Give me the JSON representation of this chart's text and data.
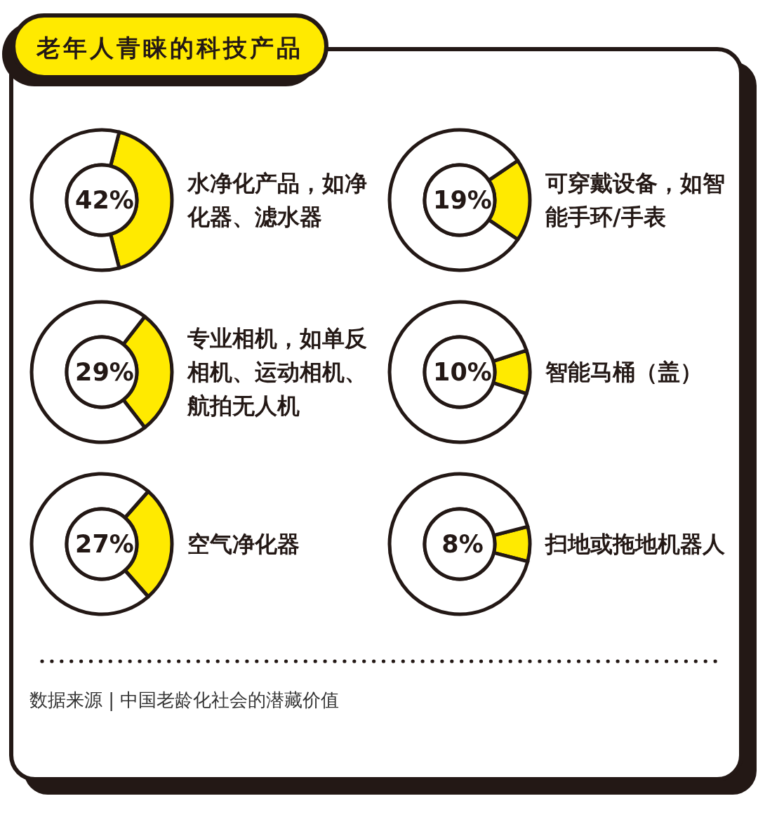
{
  "chart_data": [
    {
      "type": "other",
      "title": "老年人青睐的科技产品"
    },
    {
      "type": "donut",
      "categories": [
        "水净化产品，如净化器、滤水器",
        null
      ],
      "values": [
        42,
        58
      ],
      "colors": [
        "#ffea00",
        "#ffffff"
      ],
      "value_labels": [
        "42%",
        null
      ]
    },
    {
      "type": "donut",
      "categories": [
        "可穿戴设备，如智能手环/手表",
        null
      ],
      "values": [
        19,
        81
      ],
      "colors": [
        "#ffea00",
        "#ffffff"
      ],
      "value_labels": [
        "19%",
        null
      ]
    },
    {
      "type": "donut",
      "categories": [
        "专业相机，如单反相机、运动相机、航拍无人机",
        null
      ],
      "values": [
        29,
        71
      ],
      "colors": [
        "#ffea00",
        "#ffffff"
      ],
      "value_labels": [
        "29%",
        null
      ]
    },
    {
      "type": "donut",
      "categories": [
        "智能马桶（盖）",
        null
      ],
      "values": [
        10,
        90
      ],
      "colors": [
        "#ffea00",
        "#ffffff"
      ],
      "value_labels": [
        "10%",
        null
      ]
    },
    {
      "type": "donut",
      "categories": [
        "空气净化器",
        null
      ],
      "values": [
        27,
        73
      ],
      "colors": [
        "#ffea00",
        "#ffffff"
      ],
      "value_labels": [
        "27%",
        null
      ]
    },
    {
      "type": "donut",
      "categories": [
        "扫地或拖地机器人",
        null
      ],
      "values": [
        8,
        92
      ],
      "colors": [
        "#ffea00",
        "#ffffff"
      ],
      "value_labels": [
        "8%",
        null
      ]
    },
    {
      "type": "other",
      "annotations": [
        "数据来源 | 中国老龄化社会的潜藏价值"
      ]
    }
  ]
}
